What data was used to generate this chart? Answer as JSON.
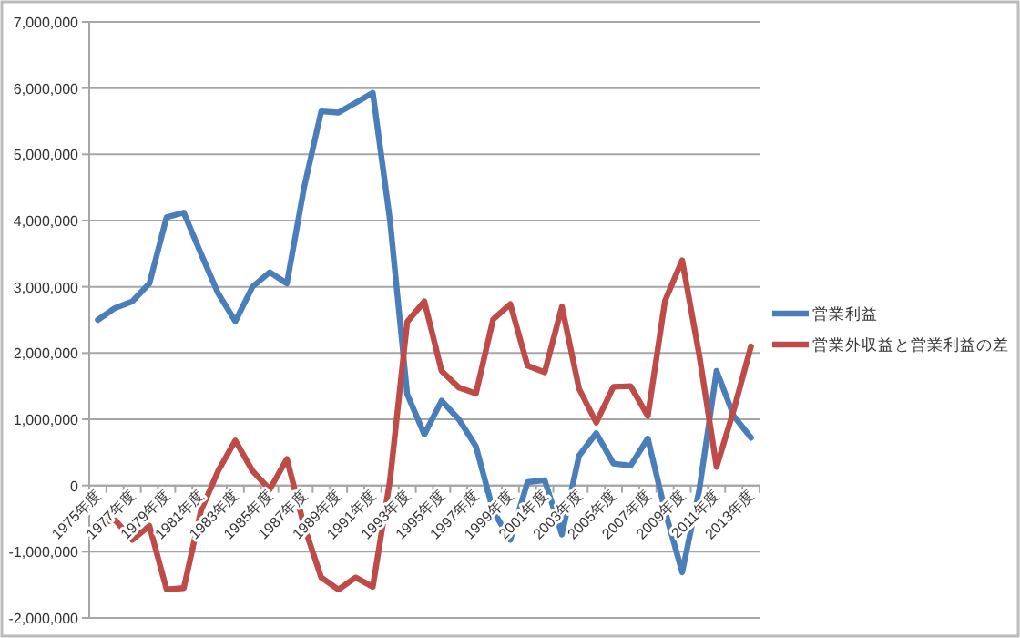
{
  "chart_data": {
    "type": "line",
    "categories": [
      "1975年度",
      null,
      "1977年度",
      null,
      "1979年度",
      null,
      "1981年度",
      null,
      "1983年度",
      null,
      "1985年度",
      null,
      "1987年度",
      null,
      "1989年度",
      null,
      "1991年度",
      null,
      "1993年度",
      null,
      "1995年度",
      null,
      "1997年度",
      null,
      "1999年度",
      null,
      "2001年度",
      null,
      "2003年度",
      null,
      "2005年度",
      null,
      "2007年度",
      null,
      "2009年度",
      null,
      "2011年度",
      null,
      "2013年度"
    ],
    "series": [
      {
        "name": "営業利益",
        "color": "#4a7ebb",
        "values": [
          2500000,
          2680000,
          2780000,
          3050000,
          4050000,
          4120000,
          3500000,
          2900000,
          2480000,
          3000000,
          3220000,
          3050000,
          4500000,
          5650000,
          5630000,
          5780000,
          5930000,
          4000000,
          1380000,
          770000,
          1280000,
          1000000,
          590000,
          -380000,
          -820000,
          50000,
          80000,
          -740000,
          450000,
          790000,
          330000,
          300000,
          710000,
          -380000,
          -1310000,
          -60000,
          1730000,
          1050000,
          720000
        ]
      },
      {
        "name": "営業外収益と営業利益の差",
        "color": "#be4b48",
        "values": [
          -570000,
          -520000,
          -820000,
          -610000,
          -1570000,
          -1550000,
          -380000,
          220000,
          680000,
          220000,
          -60000,
          400000,
          -610000,
          -1390000,
          -1570000,
          -1390000,
          -1530000,
          80000,
          2470000,
          2780000,
          1730000,
          1480000,
          1390000,
          2510000,
          2740000,
          1810000,
          1710000,
          2700000,
          1460000,
          950000,
          1490000,
          1500000,
          1050000,
          2790000,
          3400000,
          1960000,
          280000,
          1140000,
          2100000
        ]
      }
    ],
    "ylim": [
      -2000000,
      7000000
    ],
    "yticks": [
      {
        "value": -2000000,
        "label": "-2,000,000"
      },
      {
        "value": -1000000,
        "label": "-1,000,000"
      },
      0,
      {
        "value": 1000000,
        "label": "1,000,000"
      },
      {
        "value": 2000000,
        "label": "2,000,000"
      },
      {
        "value": 3000000,
        "label": "3,000,000"
      },
      {
        "value": 4000000,
        "label": "4,000,000"
      },
      {
        "value": 5000000,
        "label": "5,000,000"
      },
      {
        "value": 6000000,
        "label": "6,000,000"
      },
      {
        "value": 7000000,
        "label": "7,000,000"
      }
    ],
    "grid": "y",
    "legend": "right",
    "marker": "none",
    "line_style": "solid"
  }
}
